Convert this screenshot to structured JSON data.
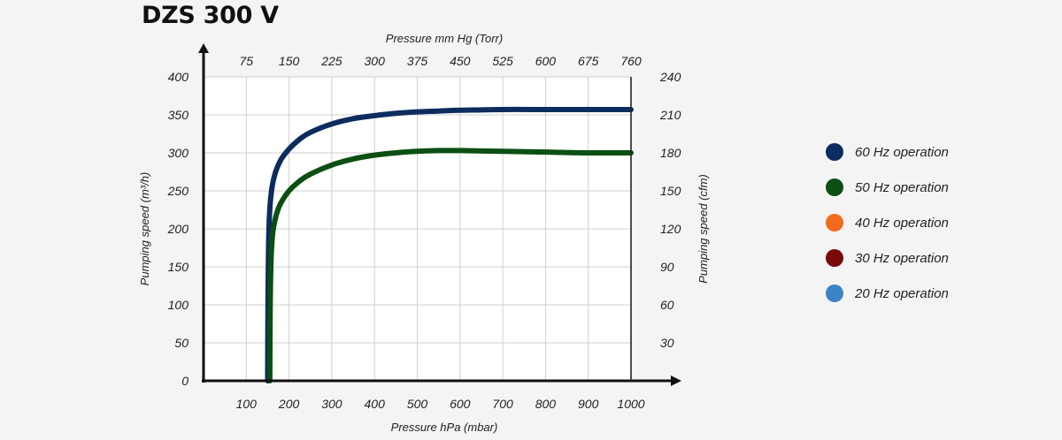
{
  "chart_data": {
    "type": "line",
    "title": "DZS 300 V",
    "xlabel": "Pressure hPa (mbar)",
    "x_ticks": [
      100,
      200,
      300,
      400,
      500,
      600,
      700,
      800,
      900,
      1000
    ],
    "xlim": [
      0,
      1000
    ],
    "x2label": "Pressure mm Hg (Torr)",
    "x2_ticks": [
      "75",
      "150",
      "225",
      "300",
      "375",
      "450",
      "525",
      "600",
      "675",
      "760"
    ],
    "ylabel": "Pumping speed (m³/h)",
    "y_ticks": [
      0,
      50,
      100,
      150,
      200,
      250,
      300,
      350,
      400
    ],
    "ylim": [
      0,
      400
    ],
    "y2label": "Pumping speed (cfm)",
    "y2_ticks": [
      "30",
      "60",
      "90",
      "120",
      "150",
      "180",
      "210",
      "240"
    ],
    "grid": true,
    "legend_position": "right",
    "series": [
      {
        "name": "60 Hz operation",
        "color": "#0d2c5e",
        "x": [
          150,
          151,
          153,
          157,
          165,
          180,
          200,
          225,
          250,
          300,
          350,
          400,
          450,
          500,
          550,
          600,
          700,
          800,
          900,
          1000
        ],
        "values": [
          0,
          120,
          200,
          240,
          268,
          290,
          305,
          318,
          327,
          338,
          345,
          349,
          352,
          354,
          355,
          356,
          357,
          357,
          357,
          357
        ]
      },
      {
        "name": "50 Hz operation",
        "color": "#0b4f12",
        "x": [
          155,
          156,
          158,
          162,
          170,
          180,
          200,
          225,
          250,
          300,
          350,
          400,
          450,
          500,
          550,
          600,
          700,
          800,
          900,
          1000
        ],
        "values": [
          0,
          100,
          160,
          195,
          218,
          233,
          250,
          263,
          272,
          284,
          292,
          297,
          300,
          302,
          303,
          303,
          302,
          301,
          300,
          300
        ]
      }
    ],
    "legend": [
      {
        "name": "60 Hz operation",
        "color": "#0d2c5e"
      },
      {
        "name": "50 Hz operation",
        "color": "#0b4f12"
      },
      {
        "name": "40 Hz operation",
        "color": "#f26a1b"
      },
      {
        "name": "30 Hz operation",
        "color": "#7a0a0a"
      },
      {
        "name": "20 Hz operation",
        "color": "#3b84c6"
      }
    ]
  }
}
